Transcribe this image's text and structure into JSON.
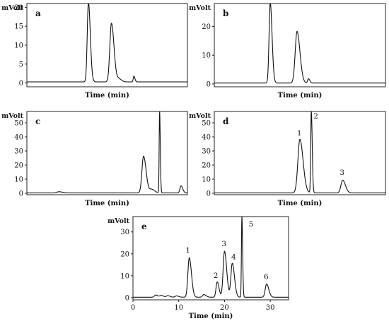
{
  "chart_data": [
    {
      "type": "line",
      "panel_label": "a",
      "ylabel": "mVolt",
      "xlabel": "Time (min)",
      "ylim": [
        -1,
        21
      ],
      "yticks": [
        0,
        5,
        10,
        15,
        20
      ],
      "xlim": [
        0,
        30
      ],
      "xticks": [],
      "baseline": 0.3,
      "peaks": [
        {
          "t": 11.5,
          "h": 21,
          "w": 0.22
        },
        {
          "t": 15.8,
          "h": 15.5,
          "w": 0.3
        },
        {
          "t": 17.2,
          "h": 0.8,
          "w": 0.3
        },
        {
          "t": 20.0,
          "h": 1.5,
          "w": 0.12
        }
      ],
      "peak_labels": []
    },
    {
      "type": "line",
      "panel_label": "b",
      "ylabel": "mVolt",
      "xlabel": "Time (min)",
      "ylim": [
        -1,
        28
      ],
      "yticks": [
        0,
        10,
        20
      ],
      "xlim": [
        0,
        30
      ],
      "xticks": [],
      "baseline": 0.3,
      "peaks": [
        {
          "t": 9.8,
          "h": 28,
          "w": 0.2
        },
        {
          "t": 14.5,
          "h": 18,
          "w": 0.32
        },
        {
          "t": 16.5,
          "h": 1.5,
          "w": 0.15
        }
      ],
      "peak_labels": []
    },
    {
      "type": "line",
      "panel_label": "c",
      "ylabel": "mVolt",
      "xlabel": "Time (min)",
      "ylim": [
        -1,
        58
      ],
      "yticks": [
        0,
        10,
        20,
        30,
        40,
        50
      ],
      "xlim": [
        0,
        30
      ],
      "xticks": [],
      "baseline": 0.3,
      "peaks": [
        {
          "t": 6.0,
          "h": 0.8,
          "w": 0.4
        },
        {
          "t": 21.8,
          "h": 26,
          "w": 0.3
        },
        {
          "t": 23.3,
          "h": 2.5,
          "w": 0.35
        },
        {
          "t": 24.8,
          "h": 58,
          "w": 0.08
        },
        {
          "t": 28.8,
          "h": 5,
          "w": 0.2
        }
      ],
      "peak_labels": []
    },
    {
      "type": "line",
      "panel_label": "d",
      "ylabel": "mVolt",
      "xlabel": "Time (min)",
      "ylim": [
        -1,
        58
      ],
      "yticks": [
        0,
        10,
        20,
        30,
        40,
        50
      ],
      "xlim": [
        0,
        30
      ],
      "xticks": [],
      "baseline": 0.3,
      "peaks": [
        {
          "t": 15.0,
          "h": 38,
          "w": 0.35
        },
        {
          "t": 17.0,
          "h": 58,
          "w": 0.1
        },
        {
          "t": 22.5,
          "h": 9,
          "w": 0.3
        }
      ],
      "peak_labels": [
        {
          "text": "1",
          "t": 14.9,
          "y": 41
        },
        {
          "text": "2",
          "t": 17.8,
          "y": 53
        },
        {
          "text": "3",
          "t": 22.4,
          "y": 13
        }
      ]
    },
    {
      "type": "line",
      "panel_label": "e",
      "ylabel": "mVolt",
      "xlabel": "Time (min)",
      "ylim": [
        -1,
        37
      ],
      "yticks": [
        0,
        10,
        20,
        30
      ],
      "xlim": [
        0,
        34
      ],
      "xticks": [
        0,
        10,
        20,
        30
      ],
      "baseline": 0.2,
      "peaks": [
        {
          "t": 5.0,
          "h": 1,
          "w": 0.3
        },
        {
          "t": 6.2,
          "h": 0.8,
          "w": 0.3
        },
        {
          "t": 7.6,
          "h": 0.7,
          "w": 0.3
        },
        {
          "t": 9.5,
          "h": 0.6,
          "w": 0.3
        },
        {
          "t": 12.3,
          "h": 18,
          "w": 0.3
        },
        {
          "t": 15.5,
          "h": 1.2,
          "w": 0.3
        },
        {
          "t": 18.4,
          "h": 7,
          "w": 0.25
        },
        {
          "t": 20.0,
          "h": 21,
          "w": 0.3
        },
        {
          "t": 21.7,
          "h": 15.5,
          "w": 0.3
        },
        {
          "t": 23.8,
          "h": 37,
          "w": 0.1
        },
        {
          "t": 29.2,
          "h": 6,
          "w": 0.3
        }
      ],
      "peak_labels": [
        {
          "text": "1",
          "t": 12.0,
          "y": 20.5
        },
        {
          "text": "2",
          "t": 18.1,
          "y": 9
        },
        {
          "text": "3",
          "t": 19.9,
          "y": 23.5
        },
        {
          "text": "4",
          "t": 22.0,
          "y": 17.5
        },
        {
          "text": "5",
          "t": 25.8,
          "y": 32.5
        },
        {
          "text": "6",
          "t": 29.1,
          "y": 8.5
        }
      ]
    }
  ]
}
